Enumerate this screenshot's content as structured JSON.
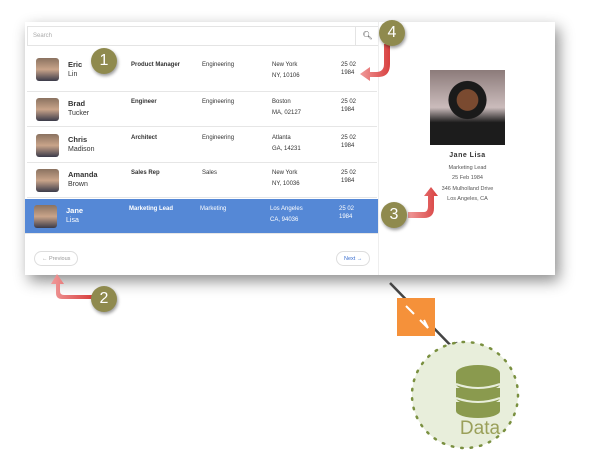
{
  "search": {
    "placeholder": "Search",
    "icon": "search-icon"
  },
  "rows": [
    {
      "first": "Eric",
      "last": "Lin",
      "role": "Product Manager",
      "dept": "Engineering",
      "city": "New York",
      "region": "NY, 10106",
      "date1": "25 02",
      "date2": "1984"
    },
    {
      "first": "Brad",
      "last": "Tucker",
      "role": "Engineer",
      "dept": "Engineering",
      "city": "Boston",
      "region": "MA, 02127",
      "date1": "25 02",
      "date2": "1984"
    },
    {
      "first": "Chris",
      "last": "Madison",
      "role": "Architect",
      "dept": "Engineering",
      "city": "Atlanta",
      "region": "GA, 14231",
      "date1": "25 02",
      "date2": "1984"
    },
    {
      "first": "Amanda",
      "last": "Brown",
      "role": "Sales Rep",
      "dept": "Sales",
      "city": "New York",
      "region": "NY, 10036",
      "date1": "25 02",
      "date2": "1984"
    },
    {
      "first": "Jane",
      "last": "Lisa",
      "role": "Marketing Lead",
      "dept": "Marketing",
      "city": "Los Angeles",
      "region": "CA, 94036",
      "date1": "25 02",
      "date2": "1984",
      "selected": true
    }
  ],
  "pagination": {
    "previous": "← Previous",
    "next": "Next →"
  },
  "detail": {
    "name": "Jane Lisa",
    "role": "Marketing Lead",
    "dob": "25 Feb 1984",
    "address": "346 Mulholland Drive",
    "city": "Los Angeles, CA"
  },
  "callouts": [
    "1",
    "2",
    "3",
    "4"
  ],
  "data_node": {
    "label": "Data",
    "icon": "database-icon"
  },
  "colors": {
    "selected": "#5588d6",
    "badge": "#8f8a4e",
    "arrow": "#e05a5a",
    "connector": "#f5913a",
    "data": "#8a9a4e"
  }
}
